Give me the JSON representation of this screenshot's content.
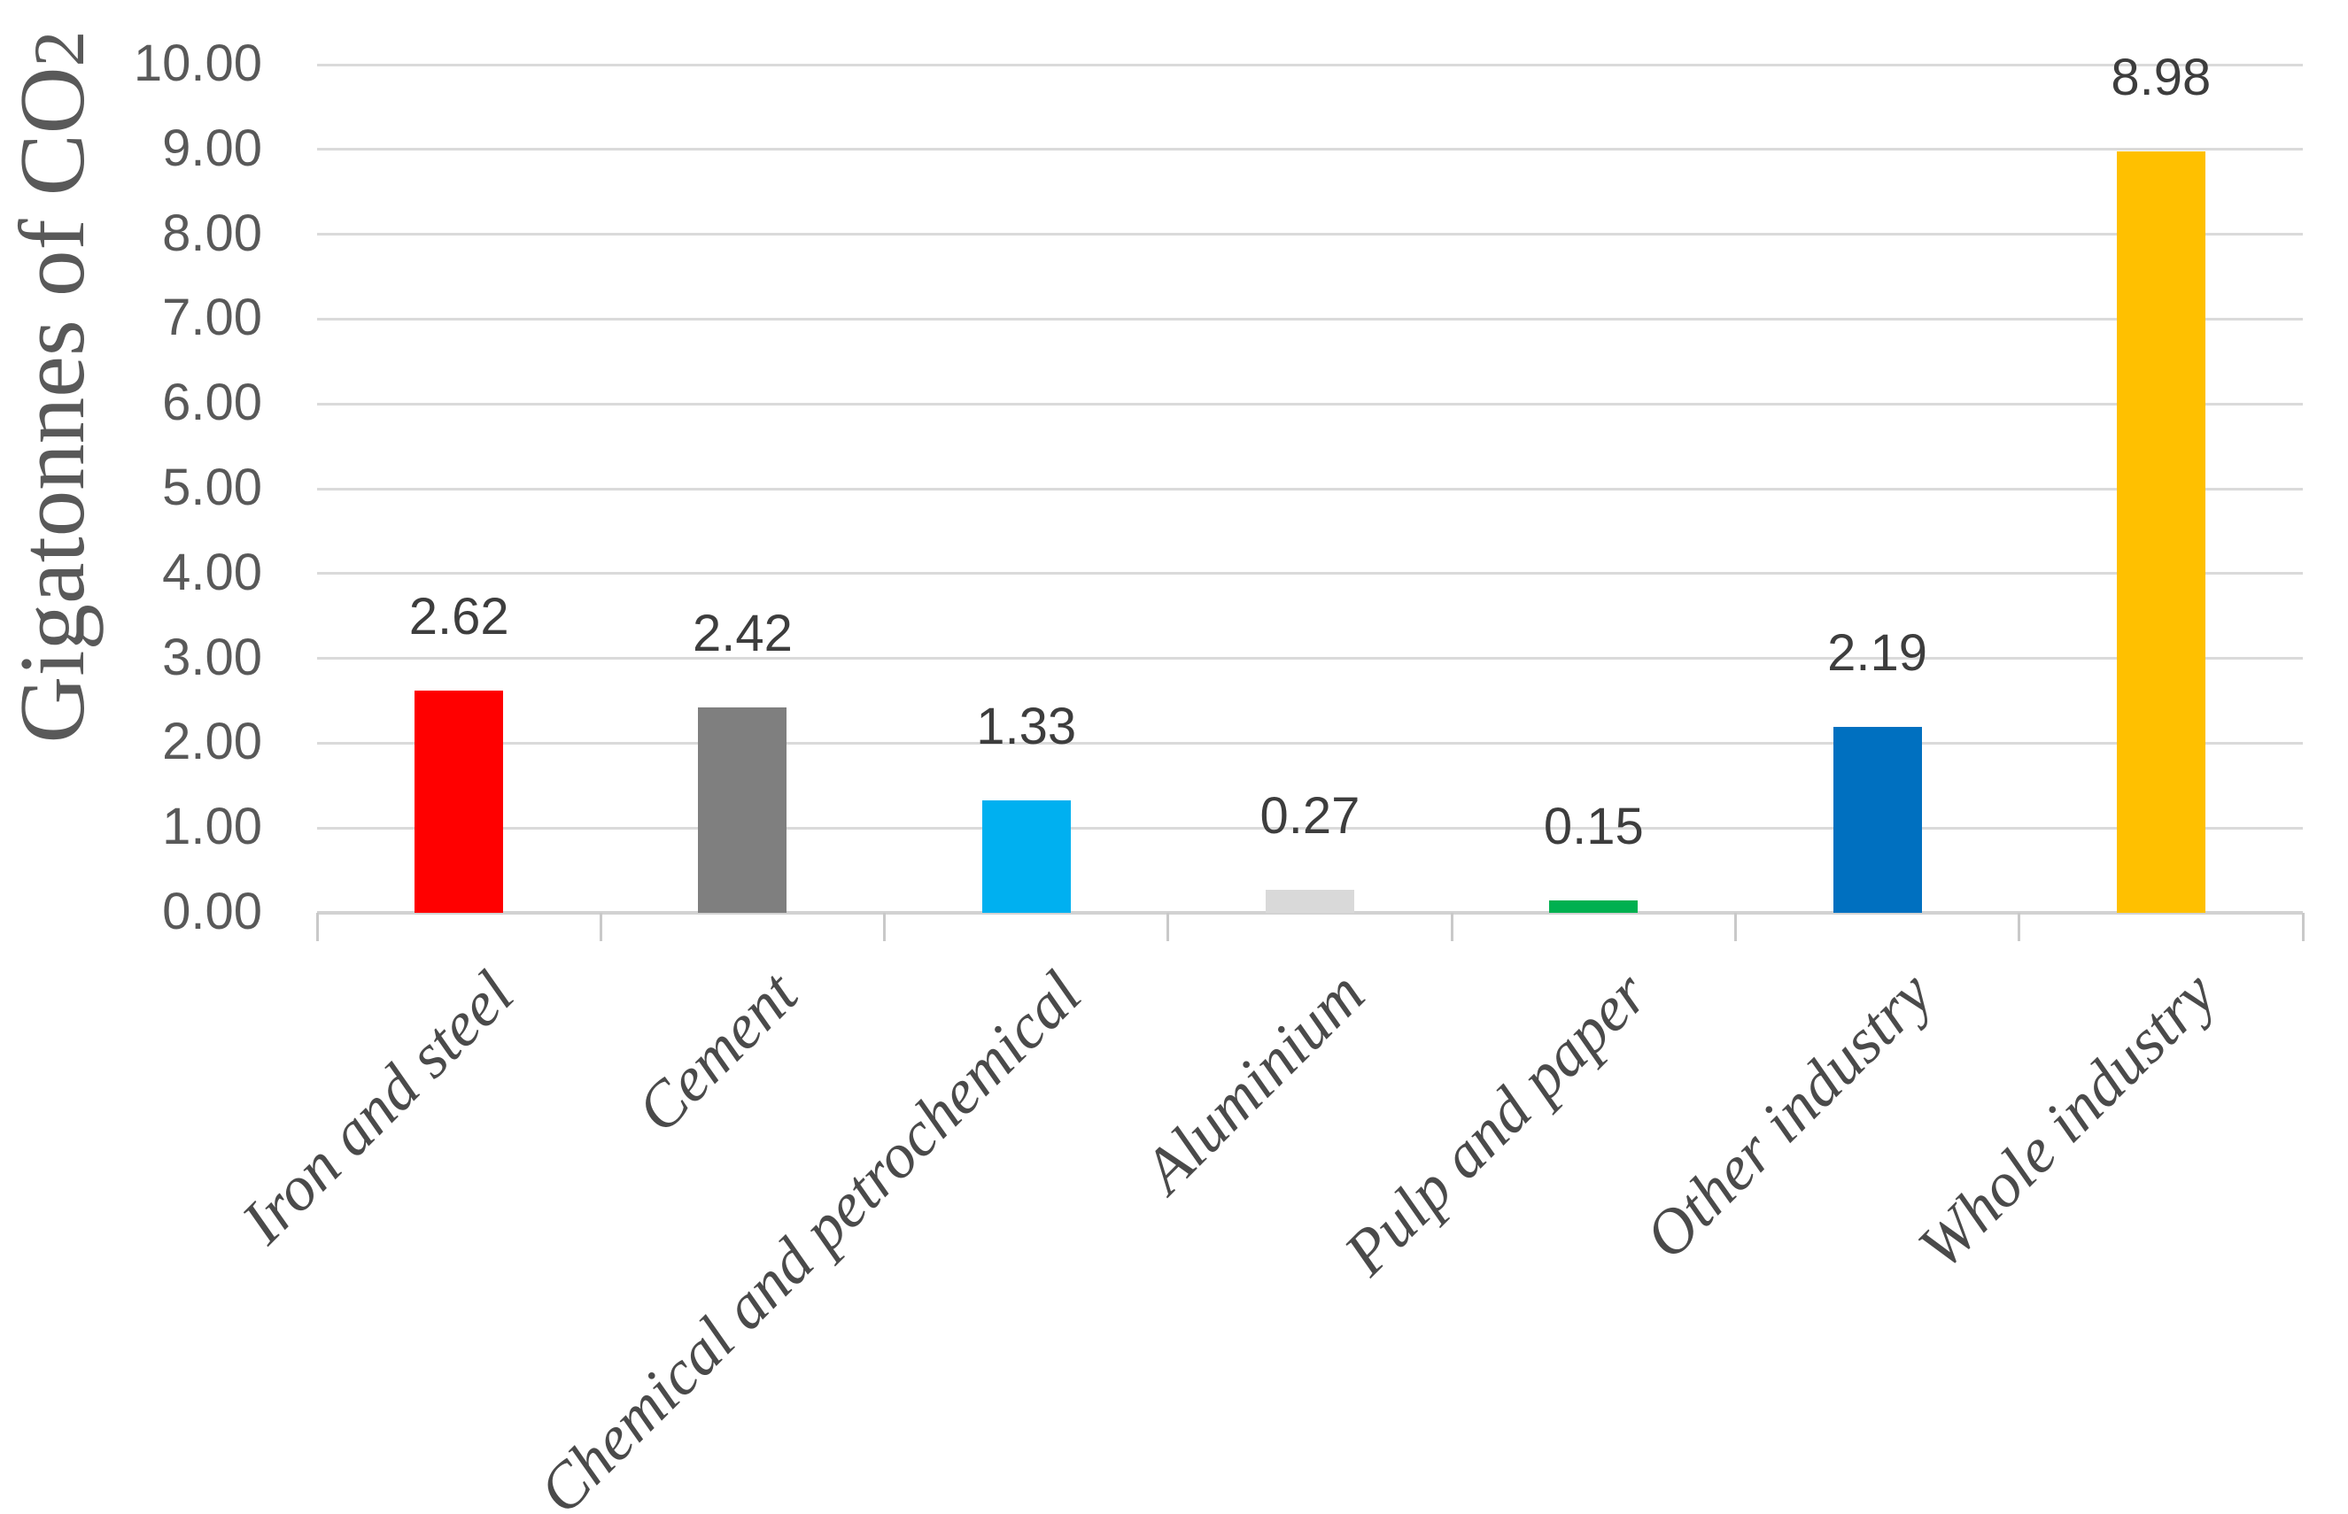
{
  "chart_data": {
    "type": "bar",
    "title": "",
    "categories": [
      "Iron and steel",
      "Cement",
      "Chemical and petrochemical",
      "Aluminium",
      "Pulp and paper",
      "Other industry",
      "Whole industry"
    ],
    "values": [
      2.62,
      2.42,
      1.33,
      0.27,
      0.15,
      2.19,
      8.98
    ],
    "data_labels": [
      "2.62",
      "2.42",
      "1.33",
      "0.27",
      "0.15",
      "2.19",
      "8.98"
    ],
    "bar_colors": [
      "#FF0000",
      "#7F7F7F",
      "#00B0F0",
      "#D9D9D9",
      "#00B050",
      "#0070C0",
      "#FFC000"
    ],
    "ylabel": "Gigatonnes of CO2",
    "ylabel_main": "Gigatonnes of CO",
    "ylabel_sub": "2",
    "ylim": [
      0,
      10
    ],
    "ytick_step": 1,
    "ytick_labels": [
      "0.00",
      "1.00",
      "2.00",
      "3.00",
      "4.00",
      "5.00",
      "6.00",
      "7.00",
      "8.00",
      "9.00",
      "10.00"
    ],
    "grid": true,
    "legend_position": "none",
    "colors": {
      "grid": "#DADADA",
      "axis": "#D2D2D2",
      "tick_text": "#595959",
      "value_text": "#3D3D3D",
      "category_text": "#4A4A4A",
      "background": "#FFFFFF"
    }
  }
}
